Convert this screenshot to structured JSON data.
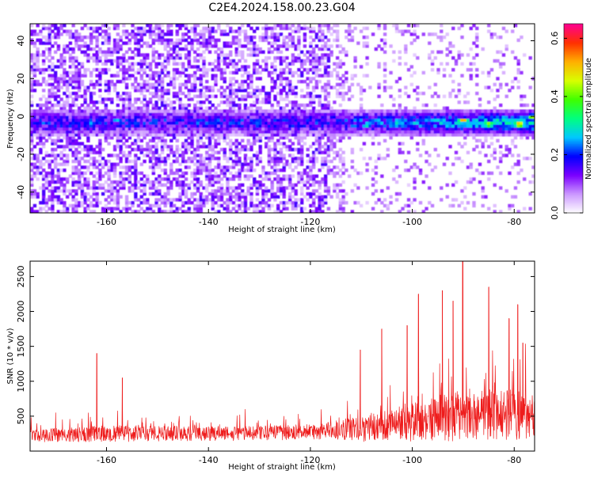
{
  "title": "C2E4.2024.158.00.23.G04",
  "colors": {
    "snr_line": "#ee1c1c",
    "colormap": [
      "#ffffff",
      "#cc99ff",
      "#7b00ff",
      "#0000ff",
      "#00c8ff",
      "#00ff80",
      "#3fff00",
      "#d8ff00",
      "#ffb000",
      "#ff3000",
      "#ff0090"
    ]
  },
  "chart_data": [
    {
      "type": "heatmap",
      "xlabel": "Height of straight line (km)",
      "ylabel": "Frequency (Hz)",
      "xlim": [
        -175,
        -76
      ],
      "ylim": [
        -51,
        49
      ],
      "xticks": [
        -160,
        -140,
        -120,
        -100,
        -80
      ],
      "xtick_labels": [
        "-160",
        "-140",
        "-120",
        "-100",
        "-80"
      ],
      "yticks": [
        -40,
        -20,
        0,
        20,
        40
      ],
      "ytick_labels": [
        "-40",
        "-20",
        "0",
        "20",
        "40"
      ],
      "colorbar": {
        "label": "Normalized spectral amplitude",
        "range": [
          0,
          0.65
        ],
        "ticks": [
          0.0,
          0.2,
          0.4,
          0.6
        ],
        "tick_labels": [
          "0.0",
          "0.2",
          "0.4",
          "0.6"
        ]
      },
      "band_center_hz": -3,
      "band_halfwidth_hz": 6,
      "hotspots": [
        {
          "x": -90,
          "y": -2,
          "v": 0.55
        },
        {
          "x": -85,
          "y": -4,
          "v": 0.5
        },
        {
          "x": -79,
          "y": -4,
          "v": 0.6
        },
        {
          "x": -76.5,
          "y": 0,
          "v": 0.45
        },
        {
          "x": -103,
          "y": -4,
          "v": 0.35
        },
        {
          "x": -109,
          "y": -5,
          "v": 0.3
        },
        {
          "x": -163,
          "y": -4,
          "v": 0.3
        },
        {
          "x": -158,
          "y": -2,
          "v": 0.28
        }
      ]
    },
    {
      "type": "line",
      "xlabel": "Height of straight line (km)",
      "ylabel": "SNR (10 * v/v)",
      "xlim": [
        -175,
        -76
      ],
      "ylim": [
        0,
        2720
      ],
      "xticks": [
        -160,
        -140,
        -120,
        -100,
        -80
      ],
      "xtick_labels": [
        "-160",
        "-140",
        "-120",
        "-100",
        "-80"
      ],
      "yticks": [
        500,
        1000,
        1500,
        2000,
        2500
      ],
      "ytick_labels": [
        "500",
        "1000",
        "1500",
        "2000",
        "2500"
      ],
      "envelope": [
        {
          "x": -175,
          "base": 220,
          "amp": 200
        },
        {
          "x": -160,
          "base": 250,
          "amp": 260
        },
        {
          "x": -140,
          "base": 250,
          "amp": 230
        },
        {
          "x": -120,
          "base": 270,
          "amp": 250
        },
        {
          "x": -110,
          "base": 320,
          "amp": 420
        },
        {
          "x": -100,
          "base": 420,
          "amp": 620
        },
        {
          "x": -90,
          "base": 520,
          "amp": 850
        },
        {
          "x": -80,
          "base": 520,
          "amp": 800
        },
        {
          "x": -76,
          "base": 500,
          "amp": 700
        }
      ],
      "peaks": [
        {
          "x": -161.9,
          "y": 1400
        },
        {
          "x": -156.9,
          "y": 1050
        },
        {
          "x": -110.2,
          "y": 1450
        },
        {
          "x": -106.0,
          "y": 1750
        },
        {
          "x": -101.0,
          "y": 1800
        },
        {
          "x": -98.8,
          "y": 2250
        },
        {
          "x": -94.1,
          "y": 2300
        },
        {
          "x": -92.0,
          "y": 2150
        },
        {
          "x": -90.1,
          "y": 2720
        },
        {
          "x": -85.0,
          "y": 2350
        },
        {
          "x": -81.0,
          "y": 1900
        },
        {
          "x": -79.3,
          "y": 2100
        },
        {
          "x": -78.3,
          "y": 1550
        }
      ]
    }
  ]
}
